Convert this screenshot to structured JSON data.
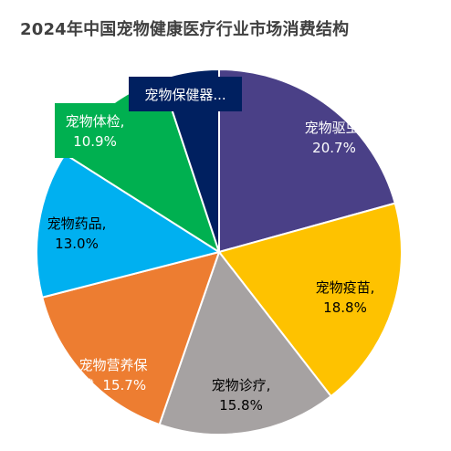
{
  "chart_data": {
    "type": "pie",
    "title": "2024年中国宠物健康医疗行业市场消费结构",
    "slices": [
      {
        "label_lines": [
          "宠物驱虫,",
          "20.7%"
        ],
        "name": "宠物驱虫",
        "value": 20.7,
        "color": "#4a4087",
        "label_color": "#ffffff",
        "label_box": null
      },
      {
        "label_lines": [
          "宠物疫苗,",
          "18.8%"
        ],
        "name": "宠物疫苗",
        "value": 18.8,
        "color": "#fec200",
        "label_color": "#000000",
        "label_box": null
      },
      {
        "label_lines": [
          "宠物诊疗,",
          "15.8%"
        ],
        "name": "宠物诊疗",
        "value": 15.8,
        "color": "#a6a2a2",
        "label_color": "#000000",
        "label_box": null
      },
      {
        "label_lines": [
          "宠物营养保",
          "健, 15.7%"
        ],
        "name": "宠物营养保健",
        "value": 15.7,
        "color": "#ed7d31",
        "label_color": "#ffffff",
        "label_box": null
      },
      {
        "label_lines": [
          "宠物药品,",
          "13.0%"
        ],
        "name": "宠物药品",
        "value": 13.0,
        "color": "#00b0f0",
        "label_color": "#000000",
        "label_box": null
      },
      {
        "label_lines": [
          "宠物体检,",
          "10.9%"
        ],
        "name": "宠物体检",
        "value": 10.9,
        "color": "#00b050",
        "label_color": "#ffffff",
        "label_box": "#00b050"
      },
      {
        "label_lines": [
          "宠物保健器..."
        ],
        "name": "宠物保健器材",
        "value": 5.1,
        "color": "#002060",
        "label_color": "#ffffff",
        "label_box": "#002060"
      }
    ]
  }
}
